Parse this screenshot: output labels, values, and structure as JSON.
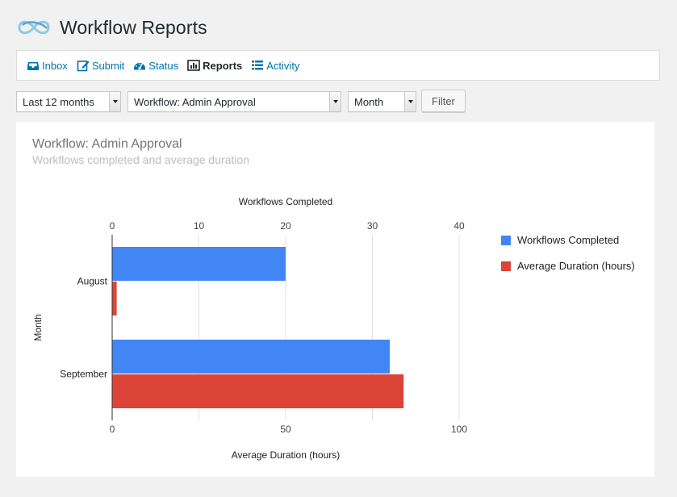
{
  "header": {
    "title": "Workflow Reports",
    "logo_icon": "infinity-loop-icon"
  },
  "nav": {
    "items": [
      {
        "label": "Inbox",
        "icon": "inbox-icon",
        "current": false
      },
      {
        "label": "Submit",
        "icon": "edit-icon",
        "current": false
      },
      {
        "label": "Status",
        "icon": "dashboard-icon",
        "current": false
      },
      {
        "label": "Reports",
        "icon": "bar-chart-icon",
        "current": true
      },
      {
        "label": "Activity",
        "icon": "list-icon",
        "current": false
      }
    ]
  },
  "filters": {
    "range": "Last 12 months",
    "workflow": "Workflow: Admin Approval",
    "group_by": "Month",
    "filter_label": "Filter"
  },
  "panel": {
    "title": "Workflow: Admin Approval",
    "subtitle": "Workflows completed and average duration"
  },
  "colors": {
    "link": "#0073aa",
    "series_completed": "#4285f4",
    "series_duration": "#db4437"
  },
  "chart_data": {
    "type": "bar",
    "orientation": "horizontal",
    "categories": [
      "August",
      "September"
    ],
    "ylabel": "Month",
    "series": [
      {
        "name": "Workflows Completed",
        "values": [
          20,
          32
        ],
        "axis": "top",
        "color": "#4285f4"
      },
      {
        "name": "Average Duration (hours)",
        "values": [
          1.3,
          84
        ],
        "axis": "bottom",
        "color": "#db4437"
      }
    ],
    "top_axis": {
      "label": "Workflows Completed",
      "ticks": [
        0,
        10,
        20,
        30,
        40
      ],
      "range": [
        0,
        40
      ]
    },
    "bottom_axis": {
      "label": "Average Duration (hours)",
      "ticks": [
        0,
        50,
        100
      ],
      "range": [
        0,
        100
      ]
    },
    "legend_position": "right",
    "grid": true
  }
}
